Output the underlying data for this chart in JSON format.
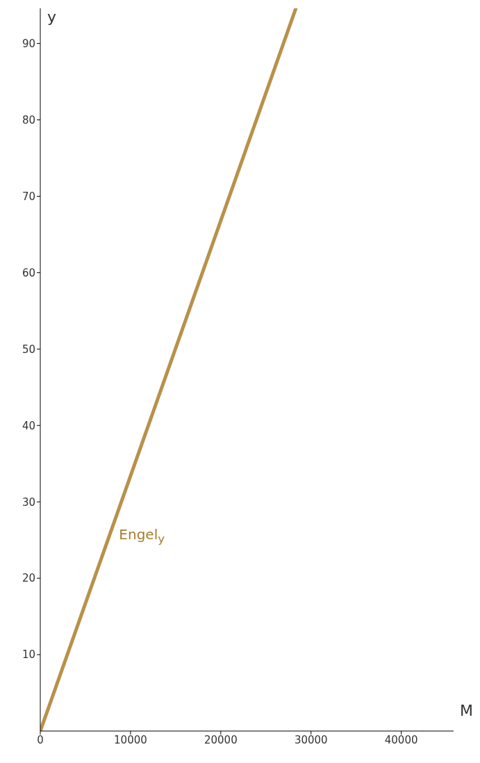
{
  "chart_data": {
    "type": "line",
    "xlabel": "M",
    "ylabel": "y",
    "x": [
      0,
      28320
    ],
    "series": [
      {
        "name": "Engel$_{y}$",
        "color": "#b8914a",
        "values": [
          0,
          94.6
        ]
      }
    ],
    "xlim": [
      0,
      45800
    ],
    "ylim": [
      0,
      94.6
    ],
    "xticks": [
      0,
      10000,
      20000,
      30000,
      40000
    ],
    "yticks": [
      10,
      20,
      30,
      40,
      50,
      60,
      70,
      80,
      90
    ],
    "grid": false,
    "legend": false,
    "marker": "none",
    "line_style": "solid"
  }
}
